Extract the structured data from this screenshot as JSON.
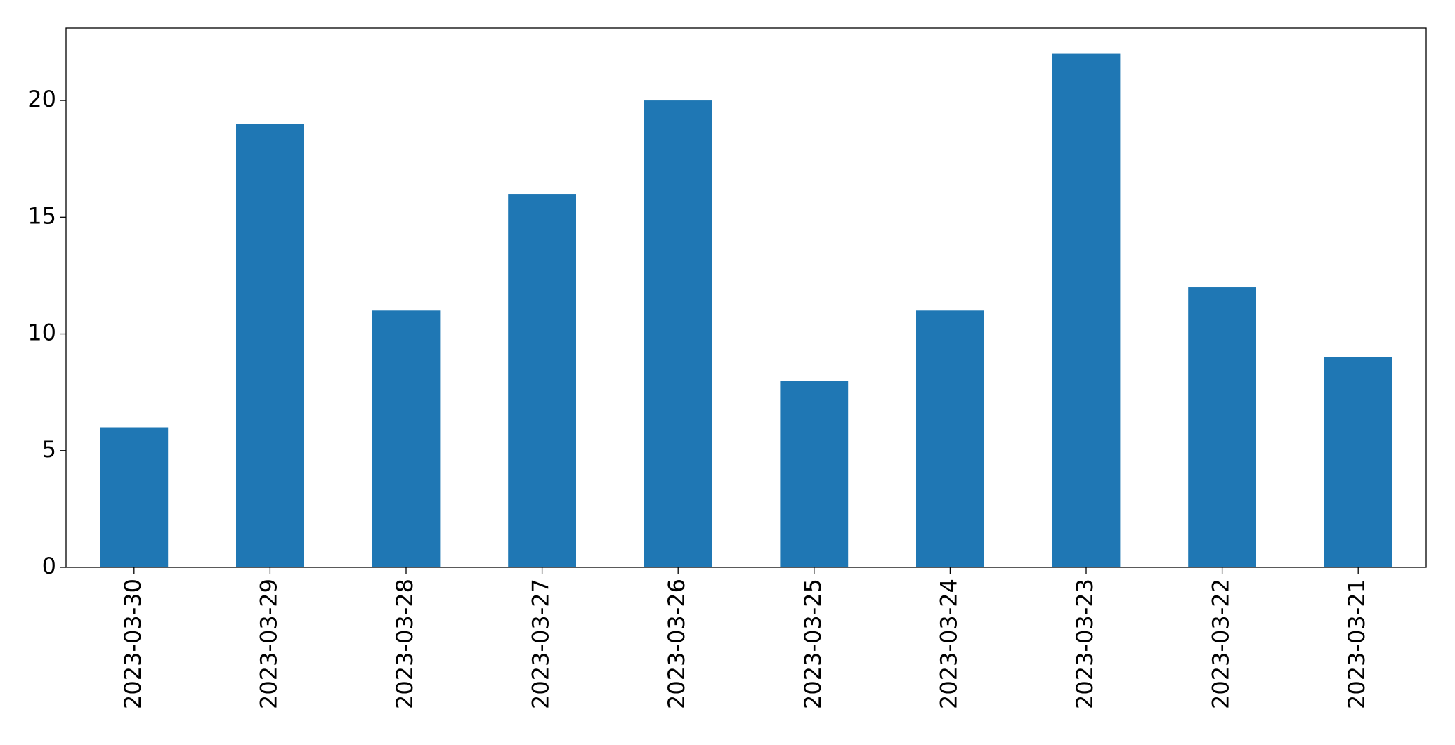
{
  "chart_data": {
    "type": "bar",
    "categories": [
      "2023-03-30",
      "2023-03-29",
      "2023-03-28",
      "2023-03-27",
      "2023-03-26",
      "2023-03-25",
      "2023-03-24",
      "2023-03-23",
      "2023-03-22",
      "2023-03-21"
    ],
    "values": [
      6,
      19,
      11,
      16,
      20,
      8,
      11,
      22,
      12,
      9
    ],
    "color": "#1f77b4",
    "ylim": [
      0,
      23.1
    ],
    "yticks": [
      0,
      5,
      10,
      15,
      20
    ],
    "grid": false
  }
}
